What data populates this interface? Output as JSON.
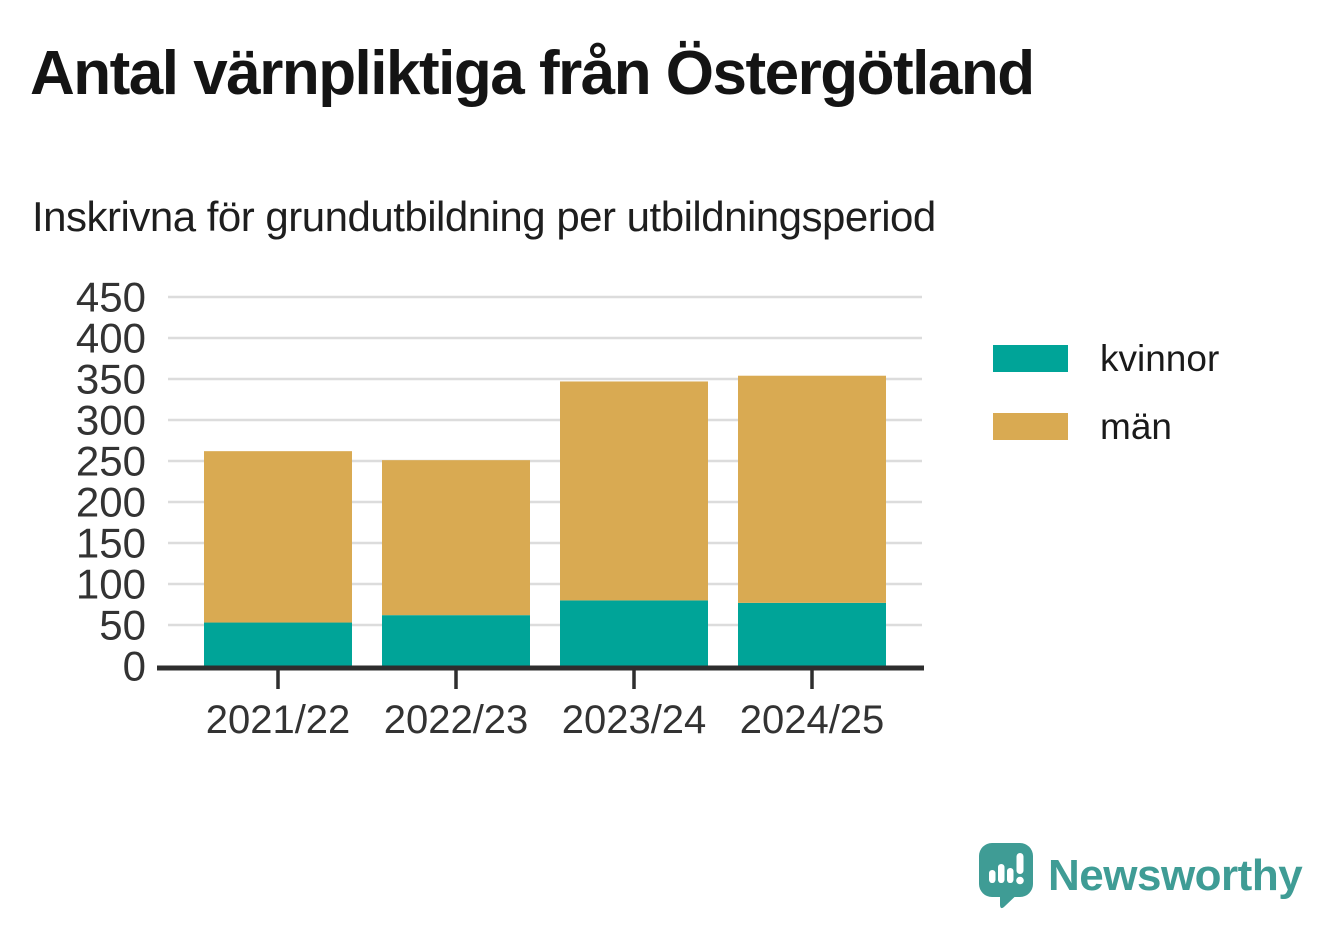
{
  "header": {
    "title": "Antal värnpliktiga från Östergötland",
    "subtitle": "Inskrivna för grundutbildning per utbildningsperiod"
  },
  "chart_data": {
    "type": "bar",
    "stacked": true,
    "title": "Antal värnpliktiga från Östergötland",
    "subtitle": "Inskrivna för grundutbildning per utbildningsperiod",
    "categories": [
      "2021/22",
      "2022/23",
      "2023/24",
      "2024/25"
    ],
    "series": [
      {
        "name": "kvinnor",
        "color": "#00A498",
        "values": [
          53,
          62,
          80,
          77
        ]
      },
      {
        "name": "män",
        "color": "#D9AA52",
        "values": [
          209,
          189,
          267,
          277
        ]
      }
    ],
    "totals": [
      262,
      251,
      347,
      354
    ],
    "xlabel": "",
    "ylabel": "",
    "ylim": [
      0,
      450
    ],
    "yticks": [
      0,
      50,
      100,
      150,
      200,
      250,
      300,
      350,
      400,
      450
    ],
    "grid": true,
    "legend_position": "right"
  },
  "footer": {
    "brand": "Newsworthy"
  },
  "colors": {
    "gridline": "#DCDCDC",
    "axis": "#2E2E2E",
    "tick_label": "#333333",
    "brand": "#3F9C95"
  }
}
